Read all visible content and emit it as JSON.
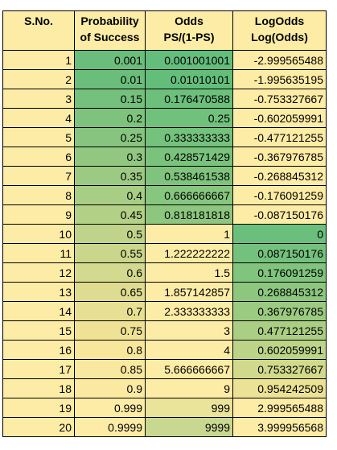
{
  "table": {
    "headers": [
      [
        "S.No.",
        ""
      ],
      [
        "Probability",
        "of Success"
      ],
      [
        "Odds",
        "PS/(1-PS)"
      ],
      [
        "LogOdds",
        "Log(Odds)"
      ]
    ],
    "rows": [
      {
        "sno": "1",
        "prob": "0.001",
        "odds": "0.001001001",
        "logodds": "-2.999565488",
        "prob_color": "#6bbd7b",
        "odds_color": "#63be7b",
        "log_color": "#fdeca6"
      },
      {
        "sno": "2",
        "prob": "0.01",
        "odds": "0.01010101",
        "logodds": "-1.995635195",
        "prob_color": "#6bbd7b",
        "odds_color": "#63be7b",
        "log_color": "#fdeca6"
      },
      {
        "sno": "3",
        "prob": "0.15",
        "odds": "0.176470588",
        "logodds": "-0.753327667",
        "prob_color": "#74c07c",
        "odds_color": "#6cc07c",
        "log_color": "#fdeca6"
      },
      {
        "sno": "4",
        "prob": "0.2",
        "odds": "0.25",
        "logodds": "-0.602059991",
        "prob_color": "#7dc27d",
        "odds_color": "#70c17c",
        "log_color": "#fdeca6"
      },
      {
        "sno": "5",
        "prob": "0.25",
        "odds": "0.333333333",
        "logodds": "-0.477121255",
        "prob_color": "#87c47f",
        "odds_color": "#74c27c",
        "log_color": "#fdeca6"
      },
      {
        "sno": "6",
        "prob": "0.3",
        "odds": "0.428571429",
        "logodds": "-0.367976785",
        "prob_color": "#92c781",
        "odds_color": "#79c37d",
        "log_color": "#fdeca6"
      },
      {
        "sno": "7",
        "prob": "0.35",
        "odds": "0.538461538",
        "logodds": "-0.268845312",
        "prob_color": "#9dca83",
        "odds_color": "#7fc47d",
        "log_color": "#fdeca6"
      },
      {
        "sno": "8",
        "prob": "0.4",
        "odds": "0.666666667",
        "logodds": "-0.176091259",
        "prob_color": "#a8cd85",
        "odds_color": "#86c67e",
        "log_color": "#fdeca6"
      },
      {
        "sno": "9",
        "prob": "0.45",
        "odds": "0.818181818",
        "logodds": "-0.087150176",
        "prob_color": "#b3d087",
        "odds_color": "#8dc77f",
        "log_color": "#fdeca6"
      },
      {
        "sno": "10",
        "prob": "0.5",
        "odds": "1",
        "logodds": "0",
        "prob_color": "#bfd38a",
        "odds_color": "#fdeca6",
        "log_color": "#6bbf7c"
      },
      {
        "sno": "11",
        "prob": "0.55",
        "odds": "1.222222222",
        "logodds": "0.087150176",
        "prob_color": "#c9d68c",
        "odds_color": "#fdeca6",
        "log_color": "#74c17d"
      },
      {
        "sno": "12",
        "prob": "0.6",
        "odds": "1.5",
        "logodds": "0.176091259",
        "prob_color": "#d3d98e",
        "odds_color": "#fdeca6",
        "log_color": "#80c47e"
      },
      {
        "sno": "13",
        "prob": "0.65",
        "odds": "1.857142857",
        "logodds": "0.268845312",
        "prob_color": "#dddc90",
        "odds_color": "#fdeca6",
        "log_color": "#8dc77f"
      },
      {
        "sno": "14",
        "prob": "0.7",
        "odds": "2.333333333",
        "logodds": "0.367976785",
        "prob_color": "#e7df93",
        "odds_color": "#fdeca6",
        "log_color": "#9bca81"
      },
      {
        "sno": "15",
        "prob": "0.75",
        "odds": "3",
        "logodds": "0.477121255",
        "prob_color": "#f0e295",
        "odds_color": "#fdeca6",
        "log_color": "#aacf84"
      },
      {
        "sno": "16",
        "prob": "0.8",
        "odds": "4",
        "logodds": "0.602059991",
        "prob_color": "#f7e69c",
        "odds_color": "#fdeca6",
        "log_color": "#bcd488"
      },
      {
        "sno": "17",
        "prob": "0.85",
        "odds": "5.666666667",
        "logodds": "0.753327667",
        "prob_color": "#f9e89f",
        "odds_color": "#fdeca6",
        "log_color": "#d1da8c"
      },
      {
        "sno": "18",
        "prob": "0.9",
        "odds": "9",
        "logodds": "0.954242509",
        "prob_color": "#fbe9a2",
        "odds_color": "#fdeca6",
        "log_color": "#ece295"
      },
      {
        "sno": "19",
        "prob": "0.999",
        "odds": "999",
        "logodds": "2.999565488",
        "prob_color": "#fdeca6",
        "odds_color": "#eae39a",
        "log_color": "#fdeca6"
      },
      {
        "sno": "20",
        "prob": "0.9999",
        "odds": "9999",
        "logodds": "3.999956568",
        "prob_color": "#fdeca6",
        "odds_color": "#c9d891",
        "log_color": "#fdeca6"
      }
    ]
  }
}
